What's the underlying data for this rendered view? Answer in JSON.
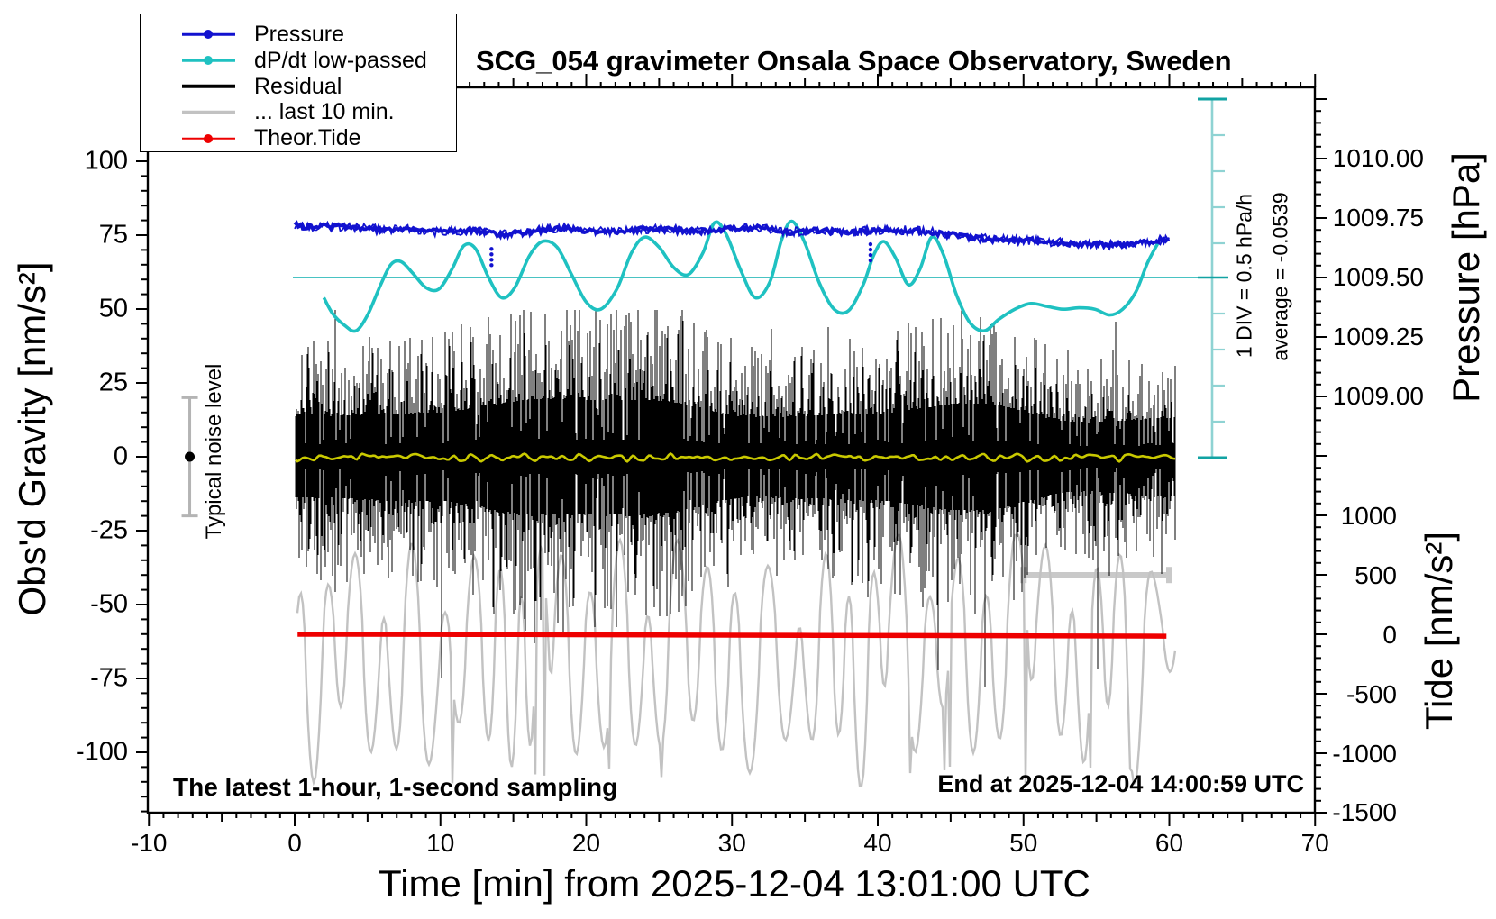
{
  "title": "SCG_054 gravimeter Onsala Space Observatory, Sweden",
  "legend": {
    "items": [
      {
        "label": "Pressure",
        "color": "#1212cf",
        "style": "line-dot"
      },
      {
        "label": "dP/dt low-passed",
        "color": "#1fc1c1",
        "style": "line-dot"
      },
      {
        "label": "Residual",
        "color": "#000000",
        "style": "thick-line"
      },
      {
        "label": "... last 10 min.",
        "color": "#c2c2c2",
        "style": "thick-line"
      },
      {
        "label": "Theor.Tide",
        "color": "#ee0000",
        "style": "line-dot"
      }
    ]
  },
  "annotations": {
    "div_scale": "1 DIV = 0.5 hPa/h",
    "average": "average = -0.0539",
    "noise_level": "Typical noise level",
    "sampling_note": "The latest 1-hour, 1-second sampling",
    "end_time": "End at 2025-12-04 14:00:59 UTC"
  },
  "axes": {
    "x": {
      "label": "Time [min] from 2025-12-04 13:01:00 UTC",
      "min": -10,
      "max": 70,
      "major_tick_values": [
        -10,
        0,
        10,
        20,
        30,
        40,
        50,
        60,
        70
      ],
      "tick_labels": [
        "-10",
        "0",
        "10",
        "20",
        "30",
        "40",
        "50",
        "60",
        "70"
      ],
      "minor_step": 1,
      "medium_step": 5
    },
    "y_left": {
      "label": "Obs'd Gravity [nm/s²]",
      "min": -120,
      "max": 125,
      "major_tick_values": [
        100,
        75,
        50,
        25,
        0,
        -25,
        -50,
        -75,
        -100
      ],
      "tick_labels": [
        "100",
        "75",
        "50",
        "25",
        "0",
        "-25",
        "-50",
        "-75",
        "-100"
      ],
      "minor_step": 5
    },
    "y_right_pressure": {
      "label": "Pressure [hPa]",
      "tick_values": [
        1010.0,
        1009.75,
        1009.5,
        1009.25,
        1009.0
      ],
      "tick_labels": [
        "1010.00",
        "1009.75",
        "1009.50",
        "1009.25",
        "1009.00"
      ],
      "minor_step": 0.05
    },
    "y_right_tide": {
      "label": "Tide [nm/s²]",
      "tick_values": [
        1000,
        500,
        0,
        -500,
        -1000,
        -1500
      ],
      "tick_labels": [
        "1000",
        "500",
        "0",
        "-500",
        "-1000",
        "-1500"
      ],
      "minor_step": 100
    }
  },
  "chart_data": {
    "type": "line",
    "x_unit": "minutes from 2025-12-04 13:01:00 UTC",
    "grid": false,
    "legend_position": "top-left",
    "series": [
      {
        "name": "Pressure",
        "color": "#1212cf",
        "axis": "pressure_hPa",
        "points": [
          [
            0,
            1009.72
          ],
          [
            1,
            1009.71
          ],
          [
            2,
            1009.715
          ],
          [
            4,
            1009.71
          ],
          [
            6,
            1009.7
          ],
          [
            8,
            1009.705
          ],
          [
            10,
            1009.69
          ],
          [
            12,
            1009.7
          ],
          [
            14,
            1009.68
          ],
          [
            16,
            1009.69
          ],
          [
            18,
            1009.71
          ],
          [
            20,
            1009.7
          ],
          [
            22,
            1009.69
          ],
          [
            24,
            1009.705
          ],
          [
            26,
            1009.7
          ],
          [
            28,
            1009.695
          ],
          [
            30,
            1009.705
          ],
          [
            32,
            1009.71
          ],
          [
            34,
            1009.69
          ],
          [
            36,
            1009.7
          ],
          [
            38,
            1009.69
          ],
          [
            40,
            1009.7
          ],
          [
            42,
            1009.7
          ],
          [
            44,
            1009.69
          ],
          [
            46,
            1009.67
          ],
          [
            48,
            1009.66
          ],
          [
            50,
            1009.655
          ],
          [
            52,
            1009.65
          ],
          [
            54,
            1009.64
          ],
          [
            56,
            1009.635
          ],
          [
            58,
            1009.65
          ],
          [
            60,
            1009.66
          ]
        ],
        "outlier_dots": [
          {
            "t": 13.5,
            "p_from": 1009.62,
            "p_to": 1009.55
          },
          {
            "t": 39.5,
            "p_from": 1009.64,
            "p_to": 1009.56
          }
        ]
      },
      {
        "name": "dP/dt low-passed",
        "color": "#1fc1c1",
        "axis": "hPa_per_hour",
        "zero_line_at_gravity": 60,
        "div_value_hPa_per_h": 0.5,
        "points": [
          [
            2.0,
            -0.28
          ],
          [
            2.6,
            -0.5
          ],
          [
            3.4,
            -0.66
          ],
          [
            4.2,
            -0.74
          ],
          [
            5.0,
            -0.52
          ],
          [
            5.9,
            -0.1
          ],
          [
            6.6,
            0.18
          ],
          [
            7.3,
            0.22
          ],
          [
            8.1,
            0.06
          ],
          [
            9.0,
            -0.14
          ],
          [
            9.9,
            -0.16
          ],
          [
            10.8,
            0.12
          ],
          [
            11.6,
            0.44
          ],
          [
            12.4,
            0.4
          ],
          [
            13.3,
            0.0
          ],
          [
            14.2,
            -0.28
          ],
          [
            15.1,
            -0.14
          ],
          [
            16.1,
            0.3
          ],
          [
            17.0,
            0.5
          ],
          [
            18.0,
            0.42
          ],
          [
            19.0,
            0.04
          ],
          [
            20.0,
            -0.34
          ],
          [
            21.0,
            -0.44
          ],
          [
            22.1,
            -0.16
          ],
          [
            23.1,
            0.34
          ],
          [
            24.0,
            0.56
          ],
          [
            25.0,
            0.42
          ],
          [
            26.0,
            0.14
          ],
          [
            27.0,
            0.04
          ],
          [
            28.0,
            0.34
          ],
          [
            28.8,
            0.76
          ],
          [
            29.6,
            0.6
          ],
          [
            30.6,
            0.1
          ],
          [
            31.6,
            -0.28
          ],
          [
            32.6,
            -0.06
          ],
          [
            33.4,
            0.52
          ],
          [
            34.1,
            0.78
          ],
          [
            35.0,
            0.48
          ],
          [
            36.0,
            -0.08
          ],
          [
            37.0,
            -0.44
          ],
          [
            38.0,
            -0.46
          ],
          [
            39.0,
            -0.1
          ],
          [
            39.7,
            0.3
          ],
          [
            40.4,
            0.5
          ],
          [
            41.2,
            0.28
          ],
          [
            42.1,
            -0.1
          ],
          [
            42.9,
            0.12
          ],
          [
            43.7,
            0.56
          ],
          [
            44.5,
            0.32
          ],
          [
            45.4,
            -0.24
          ],
          [
            46.3,
            -0.62
          ],
          [
            47.3,
            -0.74
          ],
          [
            48.3,
            -0.58
          ],
          [
            49.4,
            -0.44
          ],
          [
            50.5,
            -0.36
          ],
          [
            51.6,
            -0.4
          ],
          [
            52.7,
            -0.44
          ],
          [
            53.8,
            -0.42
          ],
          [
            54.9,
            -0.44
          ],
          [
            55.9,
            -0.52
          ],
          [
            56.8,
            -0.44
          ],
          [
            57.7,
            -0.2
          ],
          [
            58.5,
            0.2
          ],
          [
            59.2,
            0.47
          ]
        ]
      },
      {
        "name": "Residual",
        "color": "#000000",
        "axis": "gravity_nm_s2",
        "description": "1 Hz residual noise band, typical envelope ±20 nm/s², extremes +50/-75 nm/s²",
        "t_range": [
          0,
          60.5
        ],
        "noise_seed": 7
      },
      {
        "name": "... last 10 min.",
        "color": "#c2c2c2",
        "axis": "magnified residual",
        "description": "last-10-min residual magnified trace, plotted across full hour",
        "t_range": [
          0.2,
          60.5
        ],
        "noise_seed": 11
      },
      {
        "name": "Theor.Tide",
        "color": "#ee0000",
        "axis": "tide_nm_s2",
        "points": [
          [
            0.2,
            8
          ],
          [
            15,
            5
          ],
          [
            30,
            0
          ],
          [
            45,
            -4
          ],
          [
            59.8,
            -8
          ]
        ]
      },
      {
        "name": "Residual smoothed",
        "color": "#c9c900",
        "axis": "gravity_nm_s2",
        "gravity_center": 0,
        "amplitude": 1.5,
        "t_range": [
          0,
          60.5
        ],
        "noise_seed": 51
      }
    ],
    "markers": {
      "noise_bar": {
        "t": -7.2,
        "gravity_center": 0,
        "gravity_half_width": 20
      },
      "last10_bracket": {
        "t_start": 50,
        "t_end": 60,
        "gravity": -40
      },
      "dpdt_scale_bar": {
        "t": 63,
        "divisions": 10,
        "div_value_hPa_per_h": 0.5,
        "zero_at_gravity": 60
      }
    }
  }
}
